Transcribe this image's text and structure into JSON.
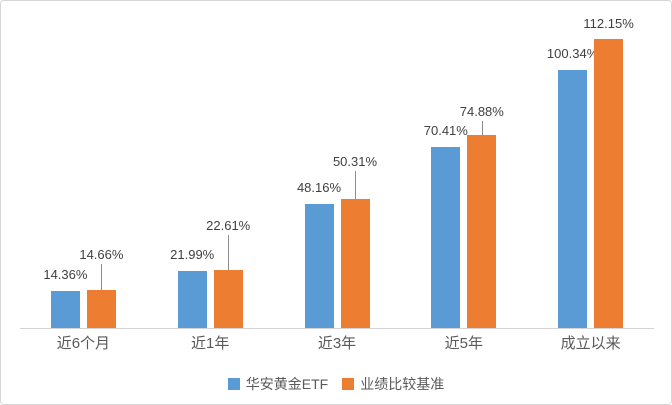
{
  "chart_data": {
    "type": "bar",
    "title": "",
    "xlabel": "",
    "ylabel": "",
    "categories": [
      "近6个月",
      "近1年",
      "近3年",
      "近5年",
      "成立以来"
    ],
    "series": [
      {
        "name": "华安黄金ETF",
        "color": "#5b9bd5",
        "values": [
          14.36,
          21.99,
          48.16,
          70.41,
          100.34
        ],
        "labels": [
          "14.36%",
          "21.99%",
          "48.16%",
          "70.41%",
          "100.34%"
        ]
      },
      {
        "name": "业绩比较基准",
        "color": "#ed7d31",
        "values": [
          14.66,
          22.61,
          50.31,
          74.88,
          112.15
        ],
        "labels": [
          "14.66%",
          "22.61%",
          "50.31%",
          "74.88%",
          "112.15%"
        ]
      }
    ],
    "ylim": [
      0,
      120
    ],
    "grid": false,
    "y_axis_visible": false,
    "legend_position": "bottom",
    "data_labels_visible": true
  },
  "colors": {
    "axis_line": "#d3d3d3",
    "leader_line": "#8c8c8c",
    "data_label_text": "#404040",
    "category_text": "#595959",
    "frame_border": "#d6d6d6",
    "background": "#ffffff"
  }
}
